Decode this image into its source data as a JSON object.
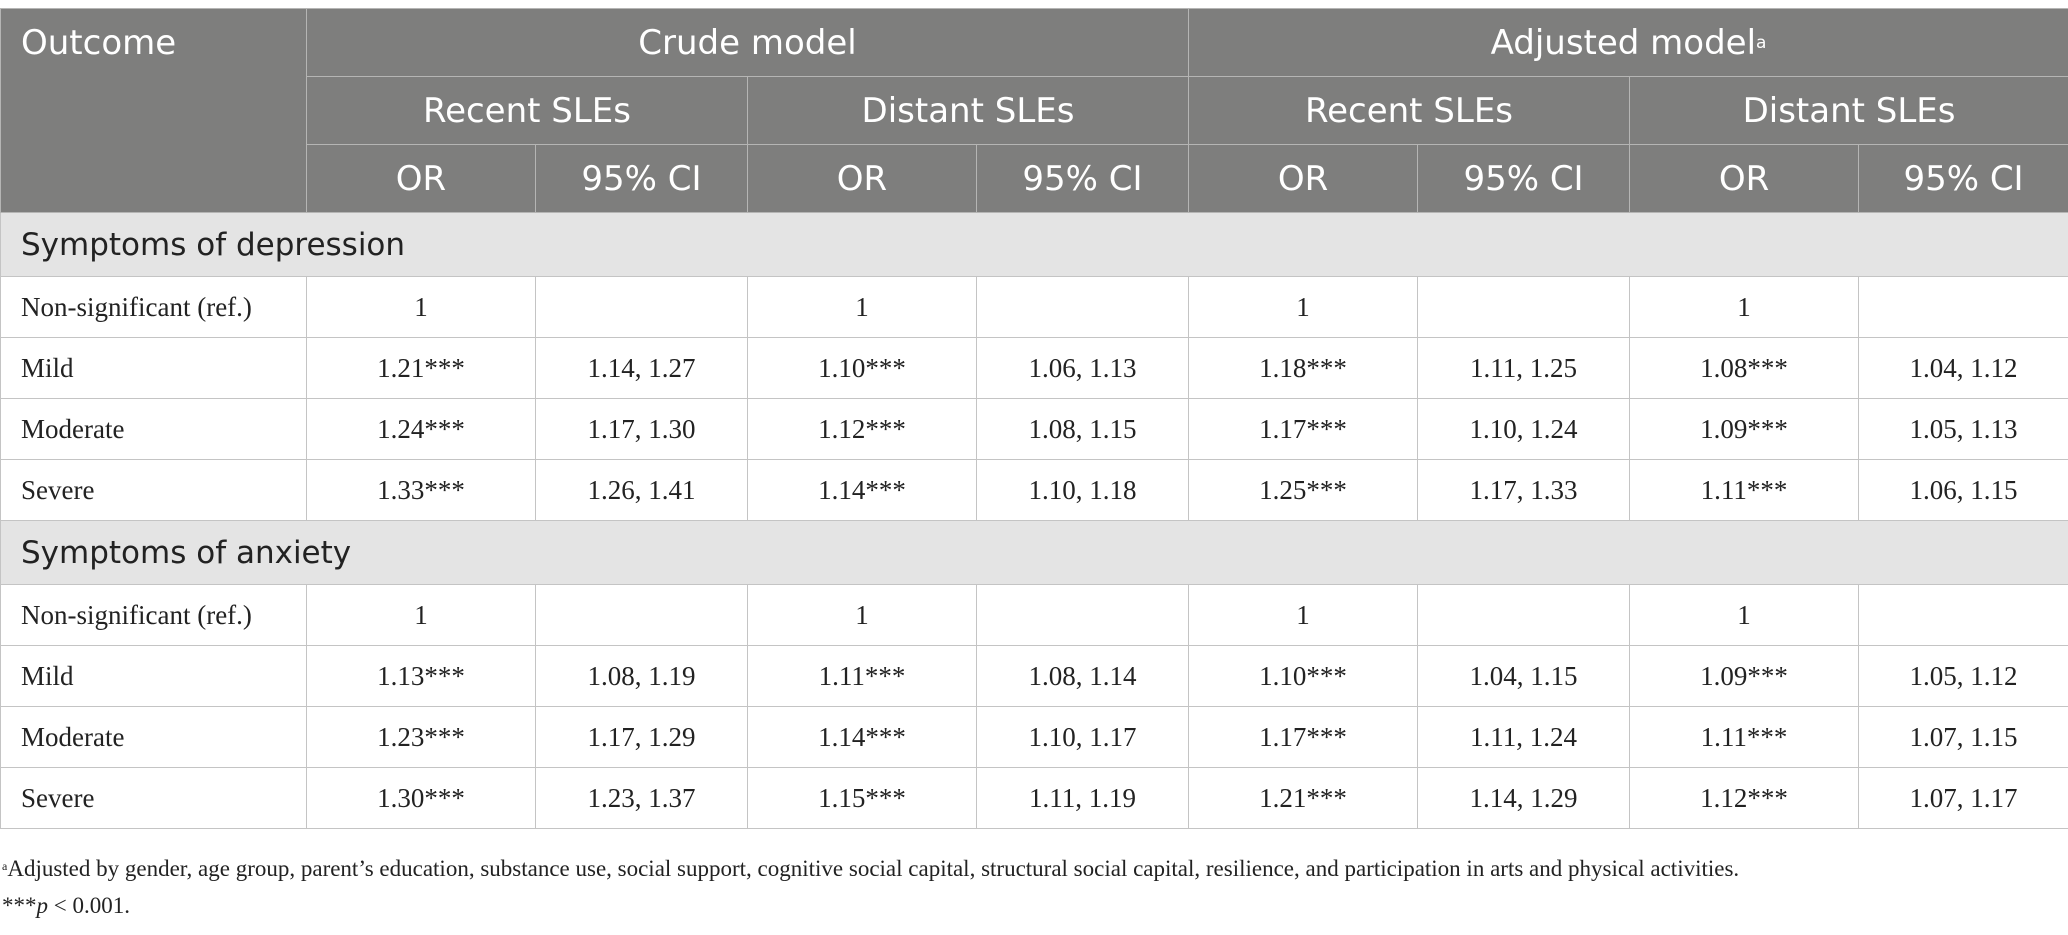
{
  "header": {
    "outcome": "Outcome",
    "crude_model": "Crude model",
    "adjusted_model": "Adjusted model",
    "adjusted_marker": "a",
    "recent_sles": "Recent SLEs",
    "distant_sles": "Distant SLEs",
    "or": "OR",
    "ci": "95% CI"
  },
  "sections": [
    {
      "title": "Symptoms of depression",
      "rows": [
        {
          "label": "Non-significant (ref.)",
          "values": [
            "1",
            "",
            "1",
            "",
            "1",
            "",
            "1",
            ""
          ]
        },
        {
          "label": "Mild",
          "values": [
            "1.21***",
            "1.14, 1.27",
            "1.10***",
            "1.06, 1.13",
            "1.18***",
            "1.11, 1.25",
            "1.08***",
            "1.04, 1.12"
          ]
        },
        {
          "label": "Moderate",
          "values": [
            "1.24***",
            "1.17, 1.30",
            "1.12***",
            "1.08, 1.15",
            "1.17***",
            "1.10, 1.24",
            "1.09***",
            "1.05, 1.13"
          ]
        },
        {
          "label": "Severe",
          "values": [
            "1.33***",
            "1.26, 1.41",
            "1.14***",
            "1.10, 1.18",
            "1.25***",
            "1.17, 1.33",
            "1.11***",
            "1.06, 1.15"
          ]
        }
      ]
    },
    {
      "title": "Symptoms of anxiety",
      "rows": [
        {
          "label": "Non-significant (ref.)",
          "values": [
            "1",
            "",
            "1",
            "",
            "1",
            "",
            "1",
            ""
          ]
        },
        {
          "label": "Mild",
          "values": [
            "1.13***",
            "1.08, 1.19",
            "1.11***",
            "1.08, 1.14",
            "1.10***",
            "1.04, 1.15",
            "1.09***",
            "1.05, 1.12"
          ]
        },
        {
          "label": "Moderate",
          "values": [
            "1.23***",
            "1.17, 1.29",
            "1.14***",
            "1.10, 1.17",
            "1.17***",
            "1.11, 1.24",
            "1.11***",
            "1.07, 1.15"
          ]
        },
        {
          "label": "Severe",
          "values": [
            "1.30***",
            "1.23, 1.37",
            "1.15***",
            "1.11, 1.19",
            "1.21***",
            "1.14, 1.29",
            "1.12***",
            "1.07, 1.17"
          ]
        }
      ]
    }
  ],
  "notes": {
    "footnote_marker": "a",
    "footnote_a": "Adjusted by gender, age group, parent’s education, substance use, social support, cognitive social capital, structural social capital, resilience, and participation in arts and physical activities.",
    "sig_stars": "***",
    "sig_p": "p",
    "sig_rest": " < 0.001."
  }
}
